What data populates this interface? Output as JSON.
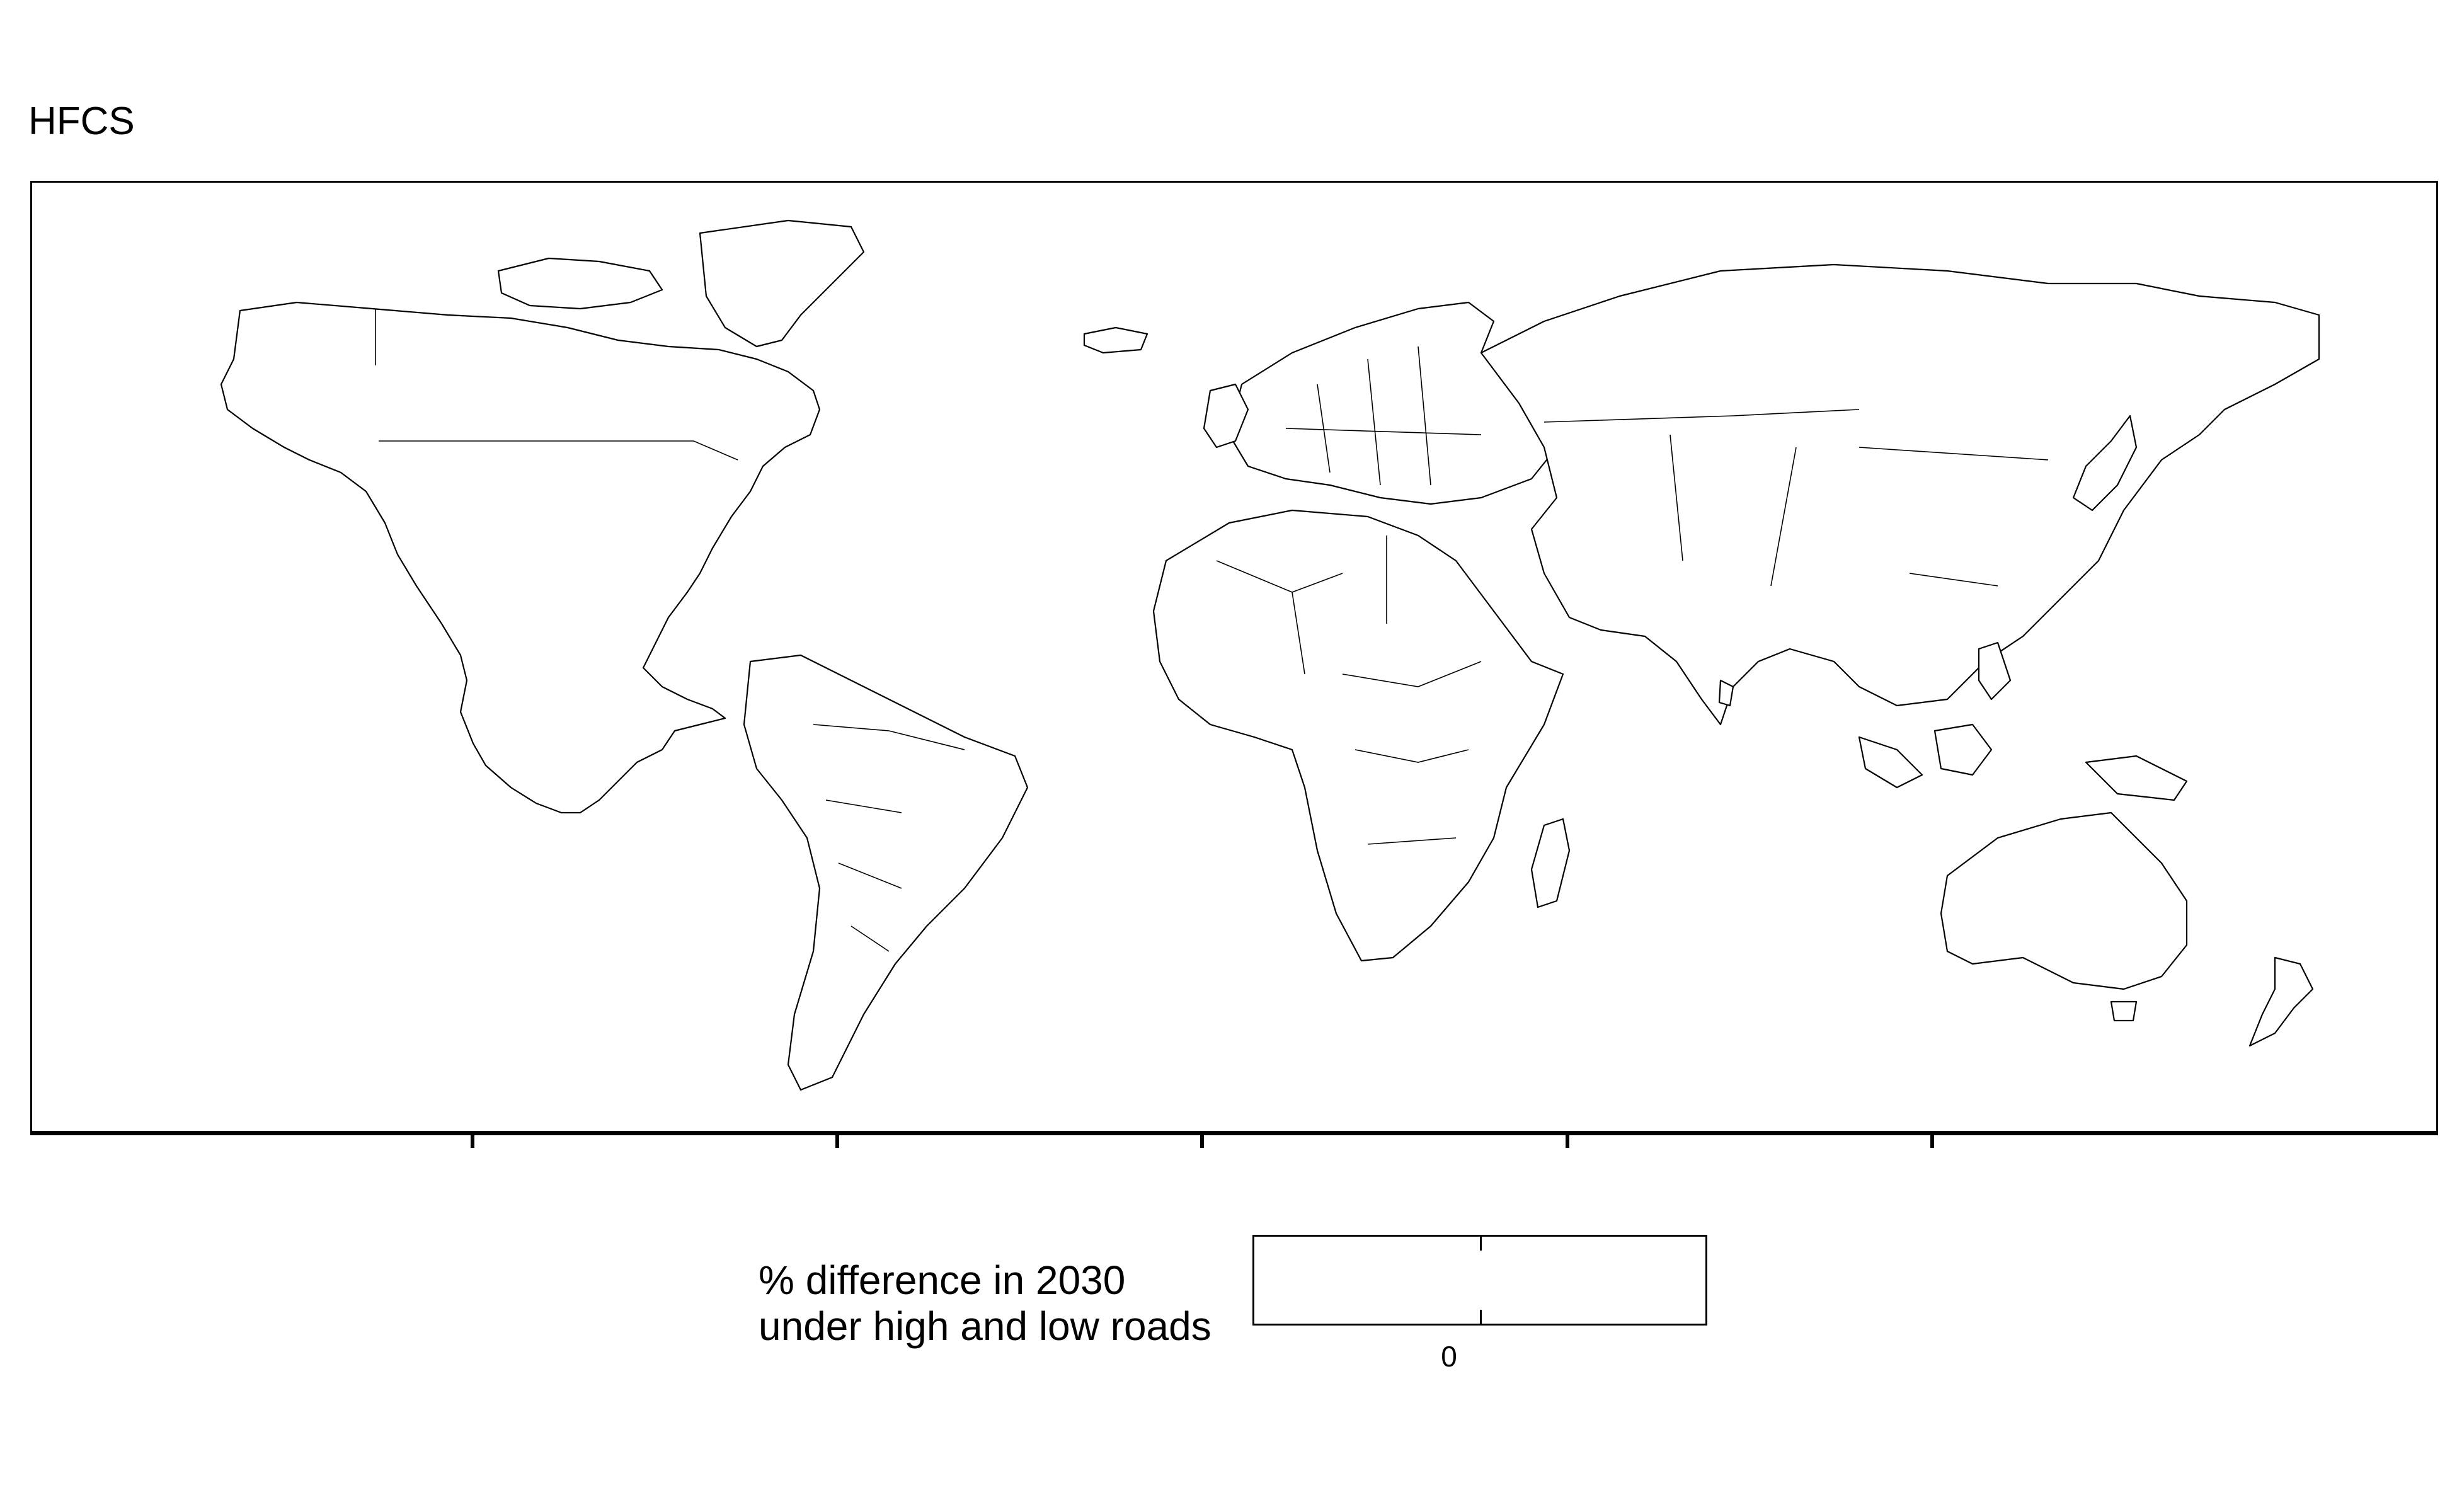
{
  "title": "HFCS",
  "legend": {
    "title_line1": "% difference in 2030",
    "title_line2": "under high and low roads",
    "tick_label": "0"
  },
  "map": {
    "fill_color": "#ffffff",
    "border_color": "#000000",
    "x_axis_ticks": 5,
    "data_values_shown": "none"
  }
}
